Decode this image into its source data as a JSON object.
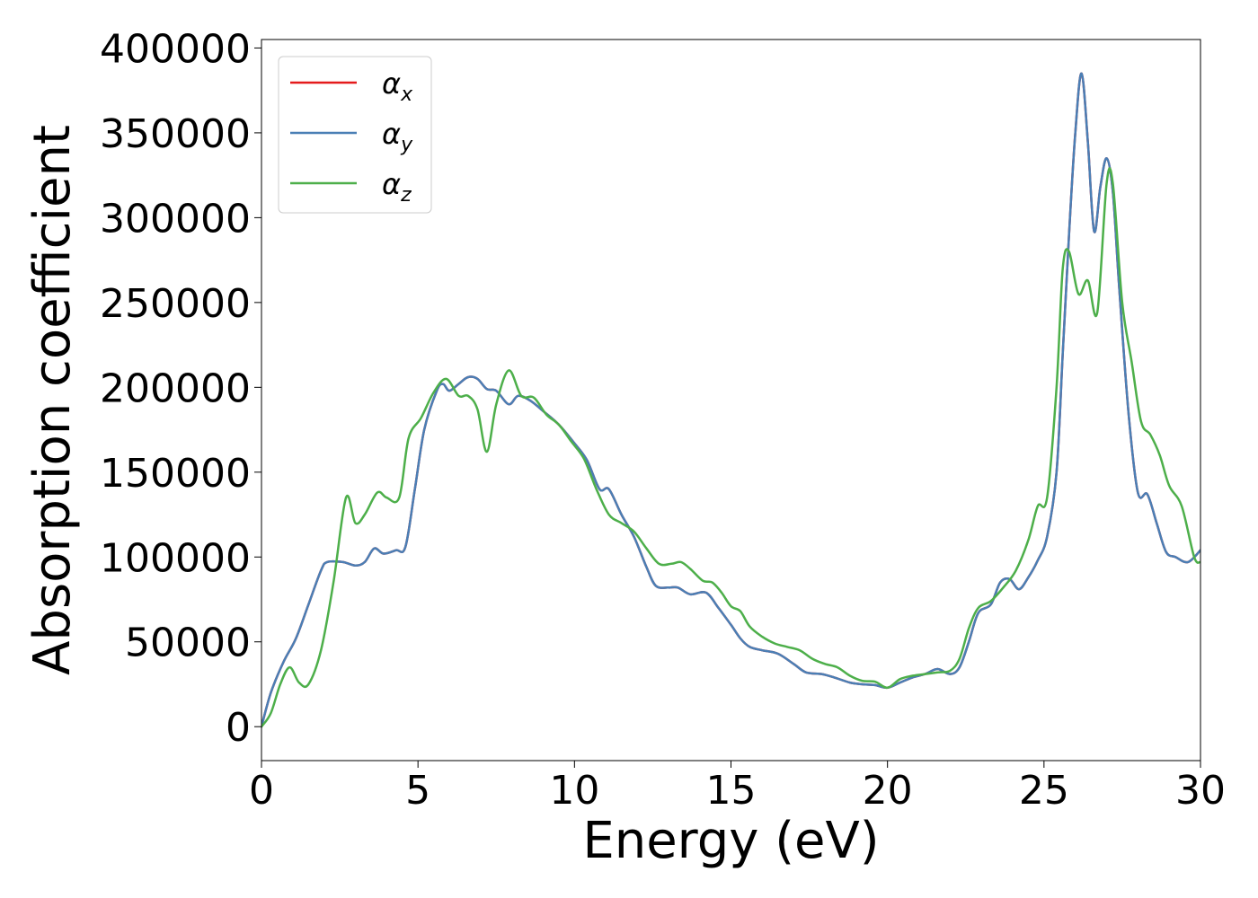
{
  "chart_data": {
    "type": "line",
    "xlabel": "Energy (eV)",
    "ylabel": "Absorption coefficient",
    "xlim": [
      0,
      30
    ],
    "ylim": [
      -20000,
      405000
    ],
    "xticks": [
      0,
      5,
      10,
      15,
      20,
      25,
      30
    ],
    "xtick_labels": [
      "0",
      "5",
      "10",
      "15",
      "20",
      "25",
      "30"
    ],
    "yticks": [
      0,
      50000,
      100000,
      150000,
      200000,
      250000,
      300000,
      350000,
      400000
    ],
    "ytick_labels": [
      "0",
      "50000",
      "100000",
      "150000",
      "200000",
      "250000",
      "300000",
      "350000",
      "400000"
    ],
    "grid": false,
    "legend_position": "top-left",
    "series": [
      {
        "name": "α_x",
        "label_main": "α",
        "label_sub": "x",
        "color": "#e41a1c",
        "points": [
          [
            0,
            0
          ],
          [
            0.3,
            20000
          ],
          [
            0.7,
            38000
          ],
          [
            1.1,
            52000
          ],
          [
            1.5,
            72000
          ],
          [
            1.9,
            92000
          ],
          [
            2.1,
            97000
          ],
          [
            2.6,
            97000
          ],
          [
            3.0,
            95000
          ],
          [
            3.3,
            97000
          ],
          [
            3.6,
            105000
          ],
          [
            3.9,
            102000
          ],
          [
            4.3,
            104000
          ],
          [
            4.6,
            106000
          ],
          [
            4.9,
            140000
          ],
          [
            5.2,
            175000
          ],
          [
            5.6,
            198000
          ],
          [
            5.8,
            202000
          ],
          [
            6.0,
            198000
          ],
          [
            6.3,
            202000
          ],
          [
            6.6,
            206000
          ],
          [
            6.9,
            205000
          ],
          [
            7.2,
            199000
          ],
          [
            7.5,
            198000
          ],
          [
            7.9,
            190000
          ],
          [
            8.2,
            195000
          ],
          [
            8.6,
            192000
          ],
          [
            9.0,
            186000
          ],
          [
            9.5,
            178000
          ],
          [
            10.0,
            167000
          ],
          [
            10.4,
            157000
          ],
          [
            10.8,
            140000
          ],
          [
            11.1,
            140000
          ],
          [
            11.5,
            125000
          ],
          [
            11.9,
            112000
          ],
          [
            12.3,
            94000
          ],
          [
            12.6,
            83000
          ],
          [
            13.0,
            82000
          ],
          [
            13.3,
            82000
          ],
          [
            13.7,
            78000
          ],
          [
            14.2,
            79000
          ],
          [
            14.6,
            70000
          ],
          [
            15.0,
            60000
          ],
          [
            15.3,
            52000
          ],
          [
            15.6,
            47000
          ],
          [
            16.0,
            45000
          ],
          [
            16.5,
            43000
          ],
          [
            17.0,
            37000
          ],
          [
            17.4,
            32000
          ],
          [
            17.9,
            31000
          ],
          [
            18.3,
            29000
          ],
          [
            18.8,
            26000
          ],
          [
            19.2,
            25000
          ],
          [
            19.6,
            24500
          ],
          [
            20.0,
            23000
          ],
          [
            20.4,
            26000
          ],
          [
            20.8,
            29000
          ],
          [
            21.2,
            31000
          ],
          [
            21.6,
            34000
          ],
          [
            22.0,
            31000
          ],
          [
            22.3,
            35000
          ],
          [
            22.6,
            50000
          ],
          [
            22.9,
            67000
          ],
          [
            23.3,
            72000
          ],
          [
            23.6,
            85000
          ],
          [
            23.9,
            87000
          ],
          [
            24.2,
            81000
          ],
          [
            24.5,
            88000
          ],
          [
            24.8,
            98000
          ],
          [
            25.1,
            112000
          ],
          [
            25.4,
            150000
          ],
          [
            25.6,
            220000
          ],
          [
            25.8,
            290000
          ],
          [
            26.0,
            350000
          ],
          [
            26.2,
            385000
          ],
          [
            26.4,
            345000
          ],
          [
            26.6,
            292000
          ],
          [
            26.8,
            318000
          ],
          [
            27.0,
            335000
          ],
          [
            27.2,
            315000
          ],
          [
            27.4,
            260000
          ],
          [
            27.7,
            185000
          ],
          [
            28.0,
            138000
          ],
          [
            28.3,
            137000
          ],
          [
            28.6,
            120000
          ],
          [
            28.9,
            103000
          ],
          [
            29.2,
            100000
          ],
          [
            29.6,
            97000
          ],
          [
            30.0,
            104000
          ]
        ]
      },
      {
        "name": "α_y",
        "label_main": "α",
        "label_sub": "y",
        "color": "#4a7fb5",
        "points": [
          [
            0,
            0
          ],
          [
            0.3,
            20000
          ],
          [
            0.7,
            38000
          ],
          [
            1.1,
            52000
          ],
          [
            1.5,
            72000
          ],
          [
            1.9,
            92000
          ],
          [
            2.1,
            97000
          ],
          [
            2.6,
            97000
          ],
          [
            3.0,
            95000
          ],
          [
            3.3,
            97000
          ],
          [
            3.6,
            105000
          ],
          [
            3.9,
            102000
          ],
          [
            4.3,
            104000
          ],
          [
            4.6,
            106000
          ],
          [
            4.9,
            140000
          ],
          [
            5.2,
            175000
          ],
          [
            5.6,
            198000
          ],
          [
            5.8,
            202000
          ],
          [
            6.0,
            198000
          ],
          [
            6.3,
            202000
          ],
          [
            6.6,
            206000
          ],
          [
            6.9,
            205000
          ],
          [
            7.2,
            199000
          ],
          [
            7.5,
            198000
          ],
          [
            7.9,
            190000
          ],
          [
            8.2,
            195000
          ],
          [
            8.6,
            192000
          ],
          [
            9.0,
            186000
          ],
          [
            9.5,
            178000
          ],
          [
            10.0,
            167000
          ],
          [
            10.4,
            157000
          ],
          [
            10.8,
            140000
          ],
          [
            11.1,
            140000
          ],
          [
            11.5,
            125000
          ],
          [
            11.9,
            112000
          ],
          [
            12.3,
            94000
          ],
          [
            12.6,
            83000
          ],
          [
            13.0,
            82000
          ],
          [
            13.3,
            82000
          ],
          [
            13.7,
            78000
          ],
          [
            14.2,
            79000
          ],
          [
            14.6,
            70000
          ],
          [
            15.0,
            60000
          ],
          [
            15.3,
            52000
          ],
          [
            15.6,
            47000
          ],
          [
            16.0,
            45000
          ],
          [
            16.5,
            43000
          ],
          [
            17.0,
            37000
          ],
          [
            17.4,
            32000
          ],
          [
            17.9,
            31000
          ],
          [
            18.3,
            29000
          ],
          [
            18.8,
            26000
          ],
          [
            19.2,
            25000
          ],
          [
            19.6,
            24500
          ],
          [
            20.0,
            23000
          ],
          [
            20.4,
            26000
          ],
          [
            20.8,
            29000
          ],
          [
            21.2,
            31000
          ],
          [
            21.6,
            34000
          ],
          [
            22.0,
            31000
          ],
          [
            22.3,
            35000
          ],
          [
            22.6,
            50000
          ],
          [
            22.9,
            67000
          ],
          [
            23.3,
            72000
          ],
          [
            23.6,
            85000
          ],
          [
            23.9,
            87000
          ],
          [
            24.2,
            81000
          ],
          [
            24.5,
            88000
          ],
          [
            24.8,
            98000
          ],
          [
            25.1,
            112000
          ],
          [
            25.4,
            150000
          ],
          [
            25.6,
            220000
          ],
          [
            25.8,
            290000
          ],
          [
            26.0,
            350000
          ],
          [
            26.2,
            385000
          ],
          [
            26.4,
            345000
          ],
          [
            26.6,
            292000
          ],
          [
            26.8,
            318000
          ],
          [
            27.0,
            335000
          ],
          [
            27.2,
            315000
          ],
          [
            27.4,
            260000
          ],
          [
            27.7,
            185000
          ],
          [
            28.0,
            138000
          ],
          [
            28.3,
            137000
          ],
          [
            28.6,
            120000
          ],
          [
            28.9,
            103000
          ],
          [
            29.2,
            100000
          ],
          [
            29.6,
            97000
          ],
          [
            30.0,
            104000
          ]
        ]
      },
      {
        "name": "α_z",
        "label_main": "α",
        "label_sub": "z",
        "color": "#4daf4a",
        "points": [
          [
            0,
            0
          ],
          [
            0.3,
            8000
          ],
          [
            0.6,
            25000
          ],
          [
            0.9,
            35000
          ],
          [
            1.2,
            26000
          ],
          [
            1.5,
            25000
          ],
          [
            1.9,
            45000
          ],
          [
            2.3,
            85000
          ],
          [
            2.7,
            135000
          ],
          [
            3.0,
            120000
          ],
          [
            3.3,
            125000
          ],
          [
            3.7,
            138000
          ],
          [
            4.0,
            135000
          ],
          [
            4.4,
            135000
          ],
          [
            4.7,
            170000
          ],
          [
            5.1,
            182000
          ],
          [
            5.5,
            197000
          ],
          [
            5.9,
            205000
          ],
          [
            6.3,
            195000
          ],
          [
            6.6,
            195000
          ],
          [
            6.9,
            187000
          ],
          [
            7.2,
            162000
          ],
          [
            7.5,
            190000
          ],
          [
            7.9,
            210000
          ],
          [
            8.3,
            195000
          ],
          [
            8.7,
            194000
          ],
          [
            9.1,
            184000
          ],
          [
            9.5,
            178000
          ],
          [
            9.9,
            168000
          ],
          [
            10.3,
            158000
          ],
          [
            10.7,
            140000
          ],
          [
            11.1,
            125000
          ],
          [
            11.5,
            120000
          ],
          [
            11.9,
            115000
          ],
          [
            12.3,
            105000
          ],
          [
            12.7,
            96000
          ],
          [
            13.1,
            96000
          ],
          [
            13.4,
            97000
          ],
          [
            13.7,
            93000
          ],
          [
            14.1,
            86000
          ],
          [
            14.4,
            85000
          ],
          [
            14.7,
            79000
          ],
          [
            15.0,
            71000
          ],
          [
            15.3,
            68000
          ],
          [
            15.6,
            59000
          ],
          [
            16.0,
            53000
          ],
          [
            16.4,
            49000
          ],
          [
            16.8,
            47000
          ],
          [
            17.2,
            45000
          ],
          [
            17.6,
            40000
          ],
          [
            18.0,
            37000
          ],
          [
            18.4,
            35000
          ],
          [
            18.8,
            30000
          ],
          [
            19.2,
            27000
          ],
          [
            19.6,
            26500
          ],
          [
            20.0,
            23000
          ],
          [
            20.4,
            28000
          ],
          [
            20.8,
            30000
          ],
          [
            21.2,
            31000
          ],
          [
            21.6,
            32000
          ],
          [
            22.0,
            33000
          ],
          [
            22.3,
            40000
          ],
          [
            22.6,
            58000
          ],
          [
            22.9,
            70000
          ],
          [
            23.3,
            74000
          ],
          [
            23.7,
            82000
          ],
          [
            24.1,
            92000
          ],
          [
            24.5,
            110000
          ],
          [
            24.8,
            130000
          ],
          [
            25.1,
            135000
          ],
          [
            25.4,
            200000
          ],
          [
            25.6,
            270000
          ],
          [
            25.8,
            280000
          ],
          [
            26.1,
            255000
          ],
          [
            26.4,
            263000
          ],
          [
            26.7,
            244000
          ],
          [
            27.0,
            320000
          ],
          [
            27.2,
            320000
          ],
          [
            27.5,
            250000
          ],
          [
            27.8,
            215000
          ],
          [
            28.1,
            180000
          ],
          [
            28.4,
            172000
          ],
          [
            28.7,
            160000
          ],
          [
            29.0,
            142000
          ],
          [
            29.4,
            130000
          ],
          [
            29.8,
            100000
          ],
          [
            30.0,
            97000
          ]
        ]
      }
    ]
  }
}
